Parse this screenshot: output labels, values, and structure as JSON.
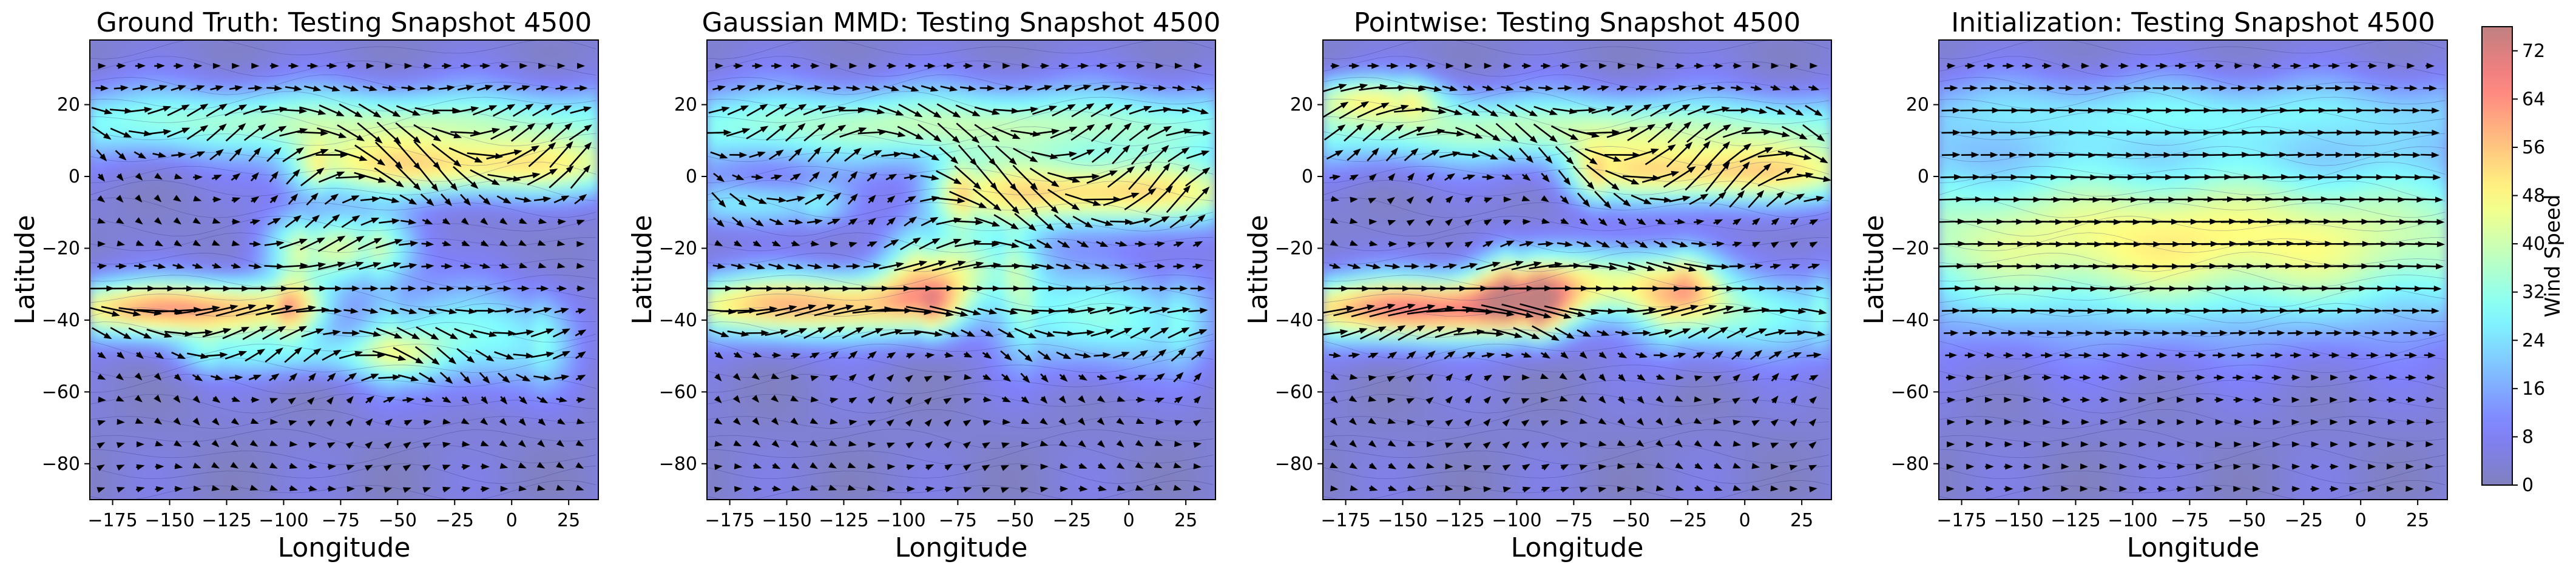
{
  "chart_data": {
    "type": "heatmap",
    "colorbar": {
      "label": "Wind Speed",
      "min": 0,
      "max": 76,
      "ticks": [
        0,
        8,
        16,
        24,
        32,
        40,
        48,
        56,
        64,
        72
      ]
    },
    "panels": [
      {
        "id": "ground-truth",
        "title": "Ground Truth: Testing Snapshot 4500",
        "xlabel": "Longitude",
        "ylabel": "Latitude",
        "xlim": [
          -185,
          38
        ],
        "ylim": [
          -90,
          38
        ],
        "xticks": [
          -175,
          -150,
          -125,
          -100,
          -75,
          -50,
          -25,
          0,
          25
        ],
        "yticks": [
          20,
          0,
          -20,
          -40,
          -60,
          -80
        ],
        "jets": [
          {
            "lon0": -185,
            "lon1": -100,
            "lat": -37,
            "width": 8,
            "peak": 60
          },
          {
            "lon0": -185,
            "lon1": 38,
            "lat": 15,
            "width": 10,
            "peak": 34
          },
          {
            "lon0": -80,
            "lon1": 38,
            "lat": 2,
            "width": 8,
            "peak": 44
          },
          {
            "lon0": -90,
            "lon1": -60,
            "lat": -20,
            "width": 10,
            "peak": 38
          },
          {
            "lon0": -50,
            "lon1": 10,
            "lat": -45,
            "width": 14,
            "peak": 28
          },
          {
            "lon0": -130,
            "lon1": -50,
            "lat": -50,
            "width": 6,
            "peak": 22
          }
        ]
      },
      {
        "id": "gaussian-mmd",
        "title": "Gaussian MMD: Testing Snapshot 4500",
        "xlabel": "Longitude",
        "ylabel": "Latitude",
        "xlim": [
          -185,
          38
        ],
        "ylim": [
          -90,
          38
        ],
        "xticks": [
          -175,
          -150,
          -125,
          -100,
          -75,
          -50,
          -25,
          0,
          25
        ],
        "yticks": [
          20,
          0,
          -20,
          -40,
          -60,
          -80
        ],
        "jets": [
          {
            "lon0": -185,
            "lon1": -90,
            "lat": -36,
            "width": 9,
            "peak": 56
          },
          {
            "lon0": -185,
            "lon1": 38,
            "lat": 14,
            "width": 11,
            "peak": 36
          },
          {
            "lon0": -70,
            "lon1": 38,
            "lat": -5,
            "width": 9,
            "peak": 50
          },
          {
            "lon0": -90,
            "lon1": -55,
            "lat": -25,
            "width": 12,
            "peak": 34
          },
          {
            "lon0": -40,
            "lon1": 20,
            "lat": -40,
            "width": 14,
            "peak": 28
          },
          {
            "lon0": -185,
            "lon1": -140,
            "lat": -8,
            "width": 6,
            "peak": 24
          }
        ]
      },
      {
        "id": "pointwise",
        "title": "Pointwise: Testing Snapshot 4500",
        "xlabel": "Longitude",
        "ylabel": "Latitude",
        "xlim": [
          -185,
          38
        ],
        "ylim": [
          -90,
          38
        ],
        "xticks": [
          -175,
          -150,
          -125,
          -100,
          -75,
          -50,
          -25,
          0,
          25
        ],
        "yticks": [
          20,
          0,
          -20,
          -40,
          -60,
          -80
        ],
        "jets": [
          {
            "lon0": -185,
            "lon1": -95,
            "lat": -37,
            "width": 9,
            "peak": 64
          },
          {
            "lon0": -185,
            "lon1": 38,
            "lat": 13,
            "width": 10,
            "peak": 36
          },
          {
            "lon0": -60,
            "lon1": 38,
            "lat": 0,
            "width": 8,
            "peak": 46
          },
          {
            "lon0": -100,
            "lon1": -30,
            "lat": -30,
            "width": 10,
            "peak": 44
          },
          {
            "lon0": -30,
            "lon1": 30,
            "lat": -38,
            "width": 12,
            "peak": 30
          },
          {
            "lon0": -185,
            "lon1": -150,
            "lat": 22,
            "width": 6,
            "peak": 30
          }
        ]
      },
      {
        "id": "initialization",
        "title": "Initialization: Testing Snapshot 4500",
        "xlabel": "Longitude",
        "ylabel": "Latitude",
        "xlim": [
          -185,
          38
        ],
        "ylim": [
          -90,
          38
        ],
        "xticks": [
          -175,
          -150,
          -125,
          -100,
          -75,
          -50,
          -25,
          0,
          25
        ],
        "yticks": [
          20,
          0,
          -20,
          -40,
          -60,
          -80
        ],
        "jets": [
          {
            "lon0": -185,
            "lon1": 38,
            "lat": -18,
            "width": 24,
            "peak": 46
          },
          {
            "lon0": -185,
            "lon1": 38,
            "lat": 18,
            "width": 10,
            "peak": 20
          }
        ]
      }
    ]
  }
}
